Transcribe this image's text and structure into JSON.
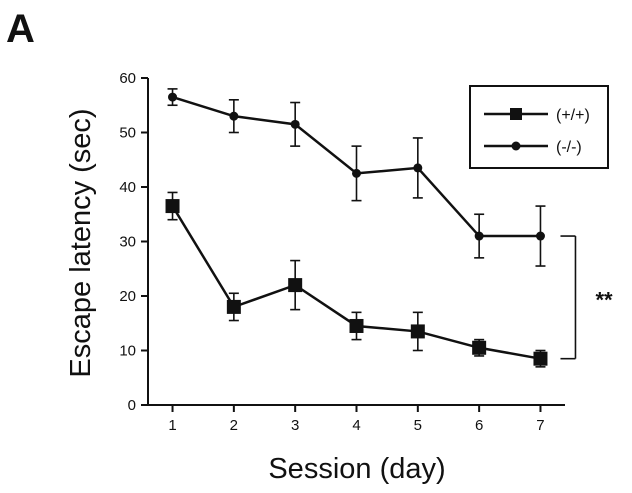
{
  "panel_label": "A",
  "chart_data": {
    "type": "line",
    "title": "",
    "xlabel": "Session (day)",
    "ylabel": "Escape latency (sec)",
    "x": [
      1,
      2,
      3,
      4,
      5,
      6,
      7
    ],
    "xlim": [
      0.6,
      7.4
    ],
    "ylim": [
      0,
      60
    ],
    "yticks": [
      0,
      10,
      20,
      30,
      40,
      50,
      60
    ],
    "grid": false,
    "legend_position": "top-right",
    "series": [
      {
        "name": "(+/+)",
        "marker": "square",
        "values": [
          36.5,
          18,
          22,
          14.5,
          13.5,
          10.5,
          8.5
        ],
        "errors": [
          2.5,
          2.5,
          4.5,
          2.5,
          3.5,
          1.5,
          1.5
        ],
        "color": "#111111"
      },
      {
        "name": "(-/-)",
        "marker": "circle",
        "values": [
          56.5,
          53,
          51.5,
          42.5,
          43.5,
          31,
          31
        ],
        "errors": [
          1.5,
          3,
          4,
          5,
          5.5,
          4,
          5.5
        ],
        "color": "#111111"
      }
    ],
    "annotations": [
      {
        "text": "**",
        "between_x": 7,
        "spans_series": [
          "(+/+)",
          "(-/-)"
        ]
      }
    ]
  }
}
